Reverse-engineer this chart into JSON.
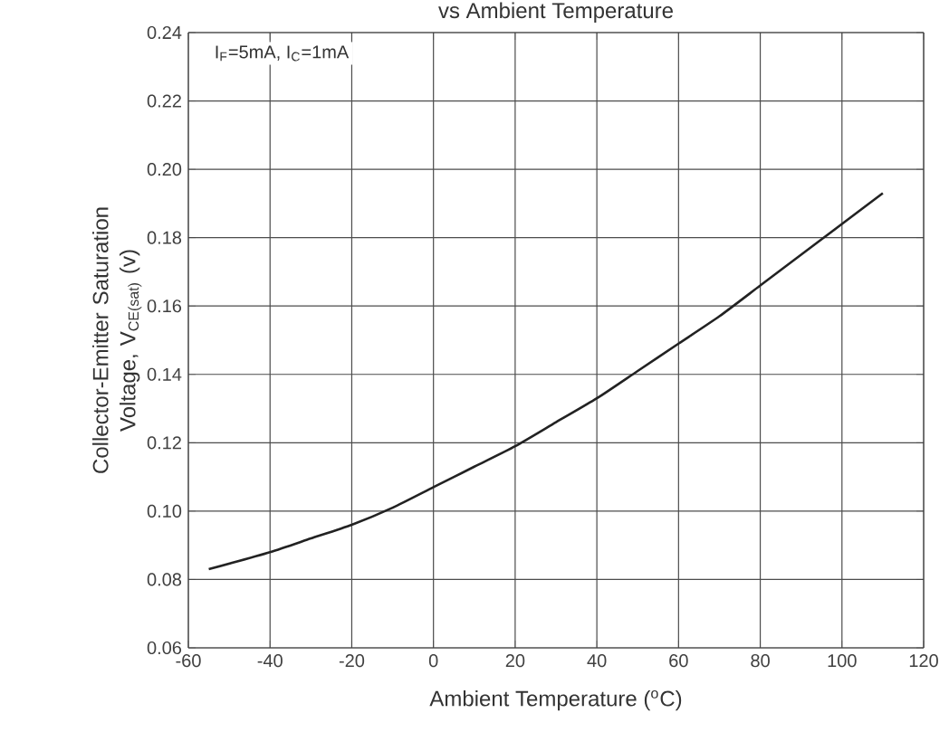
{
  "chart_data": {
    "type": "line",
    "title": "vs Ambient Temperature",
    "xlabel": "Ambient Temperature ($^{o}$C)",
    "ylabel": "Collector-Emitter Saturation Voltage, V$_{CE(sat)}$ (v)",
    "annotations": [
      "I$_{F}$=5mA, I$_{C}$=1mA"
    ],
    "x": [
      -55,
      -40,
      -30,
      -20,
      -10,
      0,
      10,
      20,
      30,
      40,
      50,
      60,
      70,
      80,
      90,
      100,
      110
    ],
    "series": [
      {
        "color": "#222222",
        "values": [
          0.083,
          0.088,
          0.092,
          0.096,
          0.101,
          0.107,
          0.113,
          0.119,
          0.126,
          0.133,
          0.141,
          0.149,
          0.157,
          0.166,
          0.175,
          0.184,
          0.193
        ]
      }
    ],
    "xlim": [
      -60,
      120
    ],
    "ylim": [
      0.06,
      0.24
    ],
    "xticks": [
      -60,
      -40,
      -20,
      0,
      20,
      40,
      60,
      80,
      100,
      120
    ],
    "yticks": [
      {
        "value": 0.06,
        "label": "0.06"
      },
      {
        "value": 0.08,
        "label": "0.08"
      },
      {
        "value": 0.1,
        "label": "0.10"
      },
      {
        "value": 0.12,
        "label": "0.12"
      },
      {
        "value": 0.14,
        "label": "0.14"
      },
      {
        "value": 0.16,
        "label": "0.16"
      },
      {
        "value": 0.18,
        "label": "0.18"
      },
      {
        "value": 0.2,
        "label": "0.20"
      },
      {
        "value": 0.22,
        "label": "0.22"
      },
      {
        "value": 0.24,
        "label": "0.24"
      }
    ],
    "grid": true,
    "marker": "none",
    "line_style": "solid"
  }
}
